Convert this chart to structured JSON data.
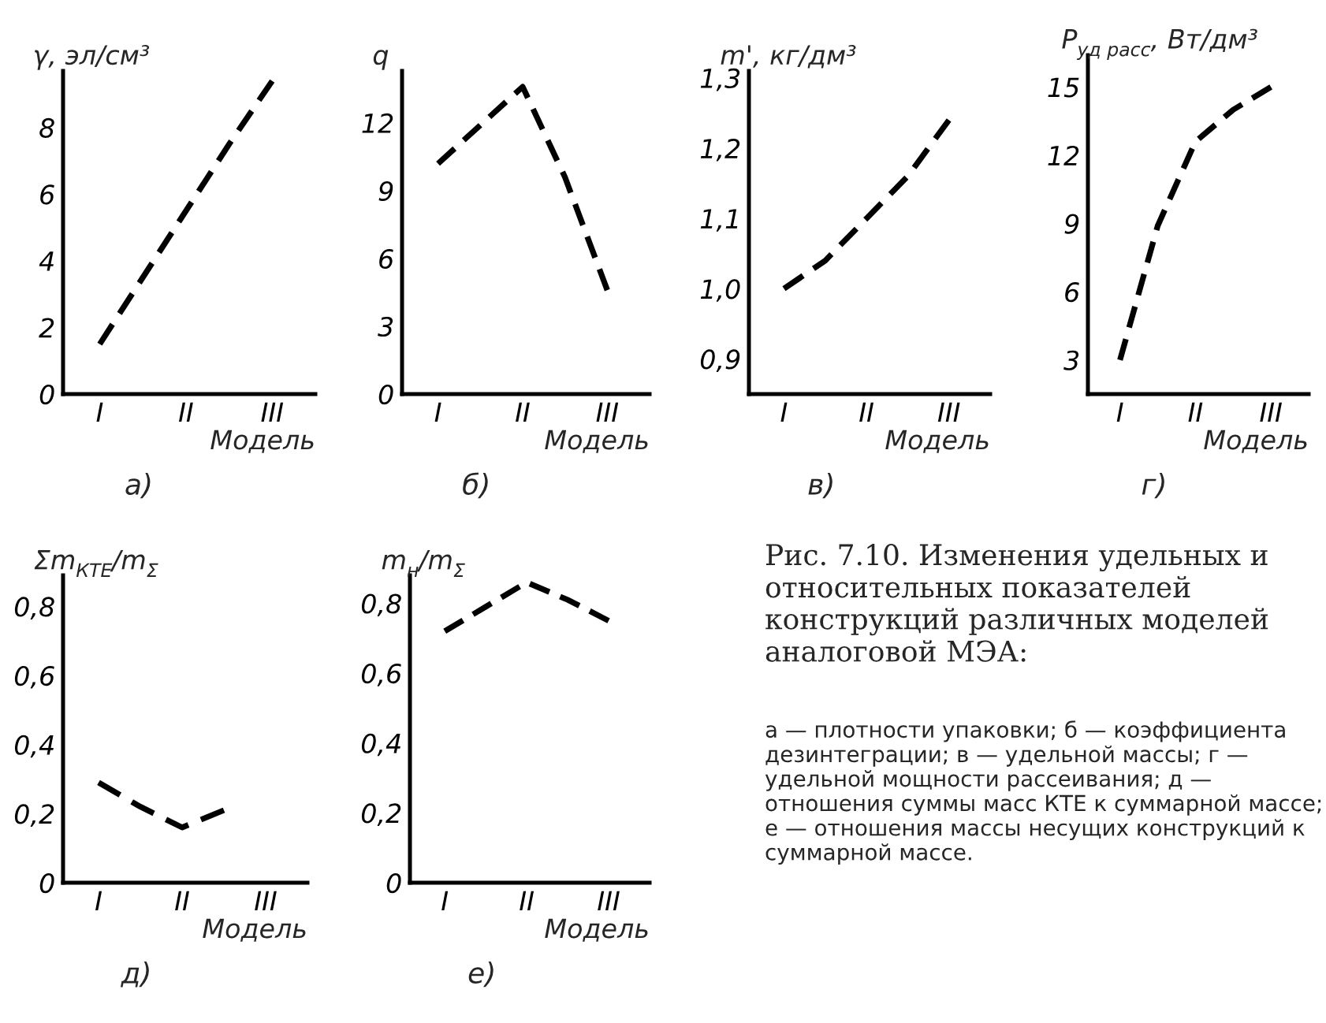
{
  "chart_data": [
    {
      "type": "line",
      "title": "а)",
      "xlabel": "Модель",
      "ylabel": "γ, эл/см³",
      "categories": [
        "I",
        null,
        "II",
        null,
        "III"
      ],
      "series": [
        {
          "color": "#000000",
          "values": [
            1.5,
            3.5,
            5.5,
            7.5,
            9.4
          ]
        }
      ],
      "ylim": [
        0,
        9.7
      ],
      "yticks": [
        0,
        2,
        4,
        6,
        8
      ],
      "line_style": "dashed"
    },
    {
      "type": "line",
      "title": "б)",
      "xlabel": "Модель",
      "ylabel": "q",
      "categories": [
        "I",
        null,
        "II",
        null,
        "III"
      ],
      "series": [
        {
          "color": "#000000",
          "values": [
            10.2,
            11.9,
            13.6,
            9.6,
            4.6
          ]
        }
      ],
      "ylim": [
        0,
        14.3
      ],
      "yticks": [
        0,
        3,
        6,
        9,
        12
      ],
      "line_style": "dashed"
    },
    {
      "type": "line",
      "title": "в)",
      "xlabel": "Модель",
      "ylabel": "m', кг/дм³",
      "categories": [
        "I",
        null,
        "II",
        null,
        "III"
      ],
      "series": [
        {
          "color": "#000000",
          "values": [
            1.0,
            1.04,
            1.1,
            1.16,
            1.24
          ]
        }
      ],
      "ylim": [
        0.85,
        1.31
      ],
      "yticks": [
        {
          "value": 0.9,
          "label": "0,9"
        },
        {
          "value": 1.0,
          "label": "1,0"
        },
        {
          "value": 1.1,
          "label": "1,1"
        },
        {
          "value": 1.2,
          "label": "1,2"
        },
        {
          "value": 1.3,
          "label": "1,3"
        }
      ],
      "line_style": "dashed"
    },
    {
      "type": "line",
      "title": "г)",
      "xlabel": "Модель",
      "ylabel": "P$_{уд расс}$, Вт/дм³",
      "categories": [
        "I",
        null,
        "II",
        null,
        "III"
      ],
      "series": [
        {
          "color": "#000000",
          "values": [
            3.0,
            8.9,
            12.6,
            14.0,
            15.0
          ]
        }
      ],
      "ylim": [
        1.5,
        16.4
      ],
      "yticks": [
        3,
        6,
        9,
        12,
        15
      ],
      "line_style": "dashed"
    },
    {
      "type": "line",
      "title": "д)",
      "xlabel": "Модель",
      "ylabel": "Σm$_{КТЕ}$/m$_{Σ}$",
      "categories": [
        "I",
        null,
        "II",
        null,
        "III"
      ],
      "series": [
        {
          "color": "#000000",
          "values": [
            0.29,
            0.22,
            0.16,
            0.21,
            null
          ]
        }
      ],
      "ylim": [
        0,
        0.89
      ],
      "yticks": [
        0,
        {
          "value": 0.2,
          "label": "0,2"
        },
        {
          "value": 0.4,
          "label": "0,4"
        },
        {
          "value": 0.6,
          "label": "0,6"
        },
        {
          "value": 0.8,
          "label": "0,8"
        }
      ],
      "line_style": "dashed"
    },
    {
      "type": "line",
      "title": "е)",
      "xlabel": "Модель",
      "ylabel": "m$_{н}$/m$_{Σ}$",
      "categories": [
        "I",
        null,
        "II",
        null,
        "III"
      ],
      "series": [
        {
          "color": "#000000",
          "values": [
            0.72,
            0.79,
            0.86,
            0.81,
            0.75
          ]
        }
      ],
      "ylim": [
        0,
        0.88
      ],
      "yticks": [
        0,
        {
          "value": 0.2,
          "label": "0,2"
        },
        {
          "value": 0.4,
          "label": "0,4"
        },
        {
          "value": 0.6,
          "label": "0,6"
        },
        {
          "value": 0.8,
          "label": "0,8"
        }
      ],
      "line_style": "dashed"
    },
    {
      "type": "other",
      "title": "Рис. 7.10. Изменения удельных и относительных показателей конструкций различных моделей аналоговой МЭА:",
      "annotations": [
        "а — плотности упаковки; б — коэффициента дезинтеграции; в — удельной массы; г — удельной мощности рассеивания; д — отношения суммы масс КТЕ к суммарной массе; е — отношения массы несущих конструкций к суммарной массе."
      ]
    }
  ]
}
